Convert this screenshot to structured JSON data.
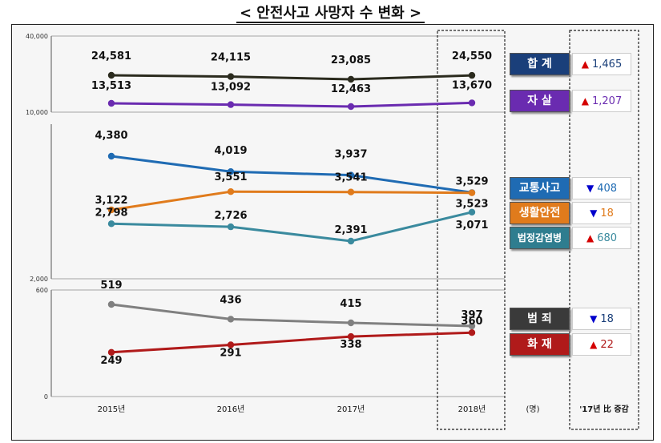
{
  "title": "< 안전사고 사망자 수 변화 >",
  "unit_label": "(명)",
  "diff_column_label": "'17년 比 증감",
  "colors": {
    "total": "#2b2b1e",
    "suicide": "#6a2bb0",
    "traffic": "#1f6bb3",
    "life": "#e07b1c",
    "infect": "#3a8a9e",
    "crime": "#808080",
    "fire": "#b01a1a",
    "up": "#d40000",
    "down": "#0000cc"
  },
  "chart_data": {
    "type": "line",
    "categories": [
      "2015년",
      "2016년",
      "2017년",
      "2018년"
    ],
    "panels": [
      {
        "axis_ticks": [
          "40,000",
          "10,000"
        ],
        "series": [
          {
            "key": "total",
            "name": "합 계",
            "values": [
              24581,
              24115,
              23085,
              24550
            ],
            "labels": [
              "24,581",
              "24,115",
              "23,085",
              "24,550"
            ],
            "change": "1,465",
            "direction": "up"
          },
          {
            "key": "suicide",
            "name": "자 살",
            "values": [
              13513,
              13092,
              12463,
              13670
            ],
            "labels": [
              "13,513",
              "13,092",
              "12,463",
              "13,670"
            ],
            "change": "1,207",
            "direction": "up"
          }
        ]
      },
      {
        "axis_ticks": [
          "2,000"
        ],
        "series": [
          {
            "key": "traffic",
            "name": "교통사고",
            "values": [
              4380,
              4019,
              3937,
              3529
            ],
            "labels": [
              "4,380",
              "4,019",
              "3,937",
              "3,529"
            ],
            "change": "408",
            "direction": "down"
          },
          {
            "key": "life",
            "name": "생활안전",
            "values": [
              3122,
              3551,
              3541,
              3523
            ],
            "labels": [
              "3,122",
              "3,551",
              "3,541",
              "3,523"
            ],
            "change": "18",
            "direction": "down"
          },
          {
            "key": "infect",
            "name": "법정감염병",
            "values": [
              2798,
              2726,
              2391,
              3071
            ],
            "labels": [
              "2,798",
              "2,726",
              "2,391",
              "3,071"
            ],
            "change": "680",
            "direction": "up"
          }
        ]
      },
      {
        "axis_ticks": [
          "600",
          "0"
        ],
        "series": [
          {
            "key": "crime",
            "name": "범 죄",
            "values": [
              519,
              436,
              415,
              397
            ],
            "labels": [
              "519",
              "436",
              "415",
              "397"
            ],
            "change": "18",
            "direction": "down"
          },
          {
            "key": "fire",
            "name": "화 재",
            "values": [
              249,
              291,
              338,
              360
            ],
            "labels": [
              "249",
              "291",
              "338",
              "360"
            ],
            "change": "22",
            "direction": "up"
          }
        ]
      }
    ]
  }
}
